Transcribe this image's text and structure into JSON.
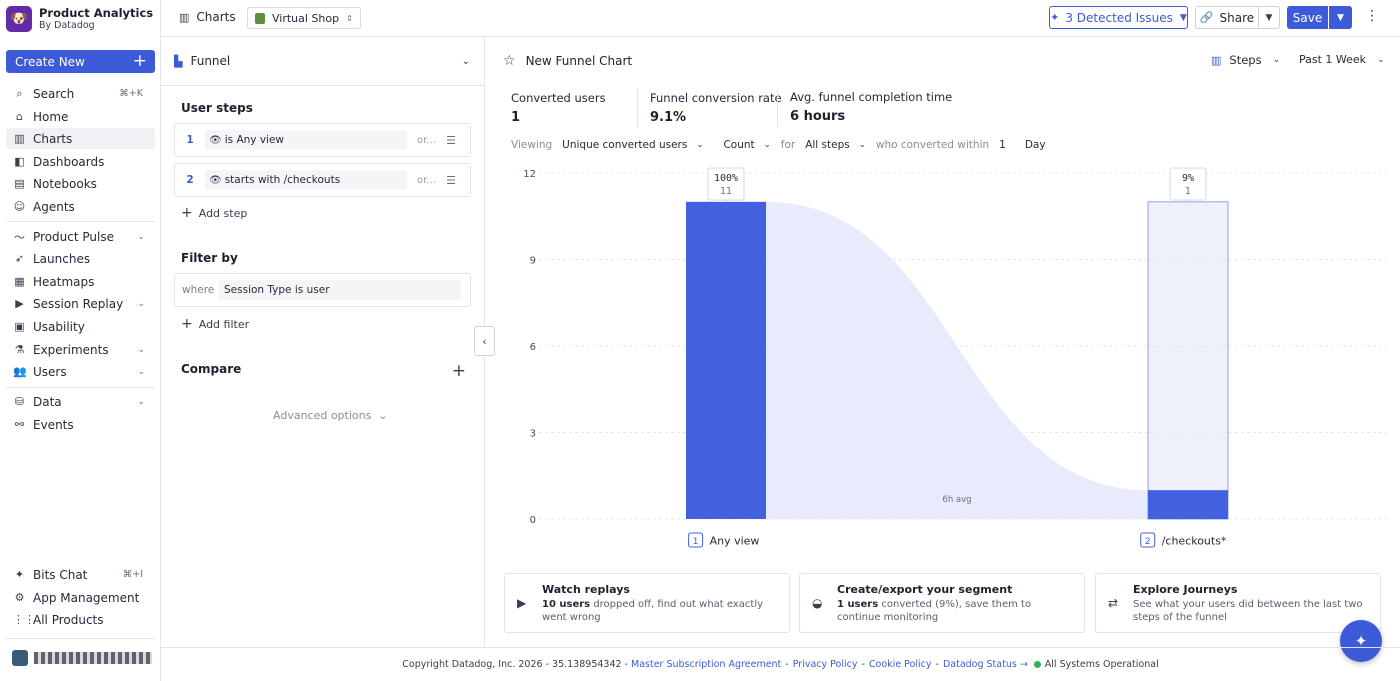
{
  "brand": {
    "title": "Product Analytics",
    "subtitle": "By Datadog"
  },
  "nav": {
    "create_label": "Create New",
    "items": [
      {
        "label": "Search",
        "shortcut": "⌘+K"
      },
      {
        "label": "Home"
      },
      {
        "label": "Charts"
      },
      {
        "label": "Dashboards"
      },
      {
        "label": "Notebooks"
      },
      {
        "label": "Agents"
      },
      {
        "label": "Product Pulse"
      },
      {
        "label": "Launches"
      },
      {
        "label": "Heatmaps"
      },
      {
        "label": "Session Replay"
      },
      {
        "label": "Usability"
      },
      {
        "label": "Experiments"
      },
      {
        "label": "Users"
      },
      {
        "label": "Data"
      },
      {
        "label": "Events"
      }
    ],
    "bottom": [
      {
        "label": "Bits Chat",
        "shortcut": "⌘+I"
      },
      {
        "label": "App Management"
      },
      {
        "label": "All Products"
      }
    ]
  },
  "header": {
    "crumb": "Charts",
    "app": "Virtual Shop",
    "issues": "3 Detected Issues",
    "share": "Share",
    "save": "Save"
  },
  "config": {
    "viz": "Funnel",
    "user_steps_title": "User steps",
    "steps": [
      {
        "num": "1",
        "op": "is",
        "value": "Any view",
        "or": "or..."
      },
      {
        "num": "2",
        "op": "starts with",
        "value": "/checkouts",
        "or": "or..."
      }
    ],
    "add_step": "Add step",
    "filter_title": "Filter by",
    "filter_where": "where",
    "filter_field": "Session Type",
    "filter_op": "is",
    "filter_value": "user",
    "add_filter": "Add filter",
    "compare_title": "Compare",
    "advanced": "Advanced options"
  },
  "main": {
    "chart_title": "New Funnel Chart",
    "steps_selector": "Steps",
    "time_range": "Past 1 Week",
    "kpis": [
      {
        "label": "Converted users",
        "value": "1"
      },
      {
        "label": "Funnel conversion rate",
        "value": "9.1%"
      },
      {
        "label": "Avg. funnel completion time",
        "value": "6 hours"
      }
    ],
    "viewing": {
      "prefix": "Viewing",
      "measure": "Unique converted users",
      "agg": "Count",
      "for": "for",
      "steps": "All steps",
      "within": "who converted within",
      "num": "1",
      "unit": "Day"
    },
    "cards": [
      {
        "title": "Watch replays",
        "strong": "10 users",
        "desc": " dropped off, find out what exactly went wrong"
      },
      {
        "title": "Create/export your segment",
        "strong": "1 users",
        "desc": " converted (9%), save them to continue monitoring"
      },
      {
        "title": "Explore Journeys",
        "strong": "",
        "desc": "See what your users did between the last two steps of the funnel"
      }
    ]
  },
  "chart_data": {
    "type": "bar",
    "categories": [
      "Any view",
      "/checkouts*"
    ],
    "values": [
      11,
      1
    ],
    "percent_labels": [
      "100%",
      "9%"
    ],
    "step_numbers": [
      "1",
      "2"
    ],
    "ylim": [
      0,
      12
    ],
    "yticks": [
      "0",
      "3",
      "6",
      "9",
      "12"
    ],
    "annotation": "6h avg",
    "grid": true,
    "colors": {
      "bar": "#4360df",
      "dropoff": "#e4e8fb",
      "flow": "#e4e8fb"
    }
  },
  "footer": {
    "copyright": "Copyright Datadog, Inc. 2026 - 35.138954342 -",
    "msa": "Master Subscription Agreement",
    "privacy": "Privacy Policy",
    "cookie": "Cookie Policy",
    "status": "Datadog Status →",
    "operational": "All Systems Operational"
  }
}
